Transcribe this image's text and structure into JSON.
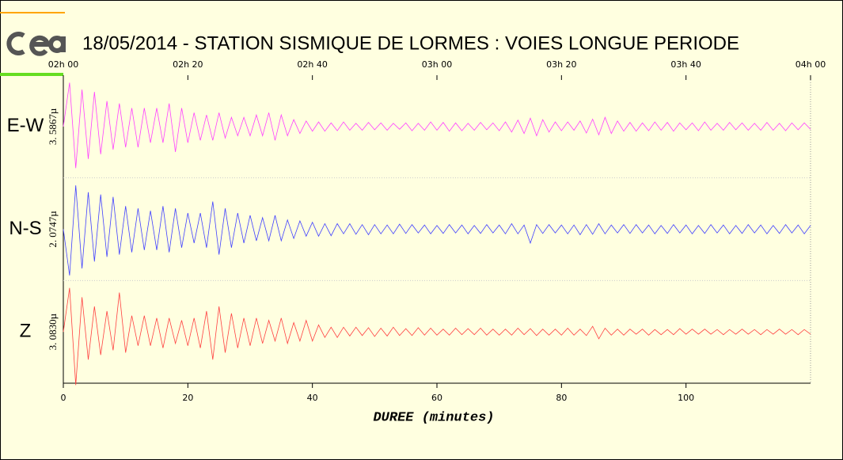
{
  "chart_data": {
    "type": "line",
    "title": "18/05/2014  -  STATION SISMIQUE DE LORMES : VOIES LONGUE PERIODE",
    "x_label": "DUREE (minutes)",
    "xlim": [
      0,
      120
    ],
    "xticks": [
      0,
      20,
      40,
      60,
      80,
      100
    ],
    "x2ticks": [
      {
        "value": 0,
        "label": "02h 00"
      },
      {
        "value": 20,
        "label": "02h 20"
      },
      {
        "value": 40,
        "label": "02h 40"
      },
      {
        "value": 60,
        "label": "03h 00"
      },
      {
        "value": 80,
        "label": "03h 20"
      },
      {
        "value": 100,
        "label": "03h 40"
      },
      {
        "value": 120,
        "label": "04h 00"
      }
    ],
    "ylim": [
      -1,
      1
    ],
    "x": [
      0,
      1,
      2,
      3,
      4,
      5,
      6,
      7,
      8,
      9,
      10,
      11,
      12,
      13,
      14,
      15,
      16,
      17,
      18,
      19,
      20,
      21,
      22,
      23,
      24,
      25,
      26,
      27,
      28,
      29,
      30,
      31,
      32,
      33,
      34,
      35,
      36,
      37,
      38,
      39,
      40,
      41,
      42,
      43,
      44,
      45,
      46,
      47,
      48,
      49,
      50,
      51,
      52,
      53,
      54,
      55,
      56,
      57,
      58,
      59,
      60,
      61,
      62,
      63,
      64,
      65,
      66,
      67,
      68,
      69,
      70,
      71,
      72,
      73,
      74,
      75,
      76,
      77,
      78,
      79,
      80,
      81,
      82,
      83,
      84,
      85,
      86,
      87,
      88,
      89,
      90,
      91,
      92,
      93,
      94,
      95,
      96,
      97,
      98,
      99,
      100,
      101,
      102,
      103,
      104,
      105,
      106,
      107,
      108,
      109,
      110,
      111,
      112,
      113,
      114,
      115,
      116,
      117,
      118,
      119,
      120
    ],
    "series": [
      {
        "name": "E-W",
        "scale_label": "3. 5867µ",
        "color": "#ff40ff",
        "values": [
          0,
          0.95,
          -0.9,
          0.8,
          -0.7,
          0.75,
          -0.6,
          0.55,
          -0.5,
          0.5,
          -0.45,
          0.4,
          -0.45,
          0.4,
          -0.35,
          0.4,
          -0.35,
          0.5,
          -0.55,
          0.4,
          -0.35,
          0.3,
          -0.3,
          0.25,
          -0.3,
          0.3,
          -0.25,
          0.2,
          -0.2,
          0.2,
          -0.2,
          0.25,
          -0.2,
          0.3,
          -0.3,
          0.25,
          -0.2,
          0.15,
          -0.15,
          0.12,
          -0.1,
          0.1,
          -0.1,
          0.08,
          -0.09,
          0.1,
          -0.08,
          0.07,
          -0.08,
          0.09,
          -0.07,
          0.08,
          -0.08,
          0.07,
          -0.06,
          0.08,
          -0.09,
          0.07,
          -0.08,
          0.1,
          -0.08,
          0.09,
          -0.1,
          0.08,
          -0.09,
          0.07,
          -0.08,
          0.09,
          -0.07,
          0.08,
          -0.09,
          0.1,
          -0.12,
          0.14,
          -0.15,
          0.18,
          -0.2,
          0.15,
          -0.12,
          0.1,
          -0.09,
          0.1,
          -0.08,
          0.12,
          -0.14,
          0.16,
          -0.18,
          0.2,
          -0.15,
          0.12,
          -0.1,
          0.09,
          -0.1,
          0.08,
          -0.09,
          0.1,
          -0.08,
          0.09,
          -0.1,
          0.08,
          -0.07,
          0.08,
          -0.09,
          0.1,
          -0.08,
          0.07,
          -0.08,
          0.09,
          -0.07,
          0.08,
          -0.08,
          0.07,
          -0.08,
          0.09,
          -0.08,
          0.07,
          -0.09,
          0.08,
          -0.07,
          0.08,
          -0.06
        ]
      },
      {
        "name": "N-S",
        "scale_label": "2. 0747µ",
        "color": "#4040ff",
        "values": [
          0,
          -1.0,
          0.95,
          -0.85,
          0.8,
          -0.7,
          0.75,
          -0.6,
          0.7,
          -0.55,
          0.5,
          -0.5,
          0.45,
          -0.45,
          0.4,
          -0.45,
          0.5,
          -0.5,
          0.45,
          -0.4,
          0.35,
          -0.3,
          0.35,
          -0.4,
          0.6,
          -0.55,
          0.45,
          -0.4,
          0.35,
          -0.3,
          0.3,
          -0.25,
          0.25,
          -0.25,
          0.3,
          -0.25,
          0.2,
          -0.2,
          0.18,
          -0.15,
          0.15,
          -0.15,
          0.12,
          -0.14,
          0.12,
          -0.1,
          0.12,
          -0.11,
          0.1,
          -0.12,
          0.1,
          -0.1,
          0.09,
          -0.1,
          0.11,
          -0.09,
          0.1,
          -0.08,
          0.09,
          -0.1,
          0.08,
          -0.09,
          0.1,
          -0.08,
          0.09,
          -0.1,
          0.08,
          -0.09,
          0.1,
          -0.08,
          0.09,
          -0.1,
          0.12,
          -0.1,
          0.09,
          -0.3,
          0.1,
          -0.09,
          0.1,
          -0.08,
          0.09,
          -0.1,
          0.09,
          -0.12,
          0.1,
          -0.11,
          0.12,
          -0.1,
          0.09,
          -0.08,
          0.1,
          -0.09,
          0.1,
          -0.08,
          0.09,
          -0.1,
          0.08,
          -0.09,
          0.1,
          -0.08,
          0.09,
          -0.1,
          0.08,
          -0.09,
          0.1,
          -0.08,
          0.09,
          -0.1,
          0.08,
          -0.09,
          0.1,
          -0.08,
          0.09,
          -0.1,
          0.08,
          -0.09,
          0.1,
          -0.08,
          0.09,
          -0.1,
          0.08
        ]
      },
      {
        "name": "Z",
        "scale_label": "3. 0830µ",
        "color": "#ff4040",
        "values": [
          0,
          0.95,
          -1.15,
          0.75,
          -0.6,
          0.55,
          -0.5,
          0.45,
          -0.4,
          0.85,
          -0.45,
          0.35,
          -0.3,
          0.35,
          -0.3,
          0.3,
          -0.35,
          0.3,
          -0.25,
          0.25,
          -0.3,
          0.3,
          -0.35,
          0.45,
          -0.6,
          0.55,
          -0.45,
          0.4,
          -0.35,
          0.3,
          -0.3,
          0.3,
          -0.25,
          0.25,
          -0.2,
          0.3,
          -0.25,
          0.2,
          -0.2,
          0.25,
          -0.2,
          0.15,
          -0.12,
          0.1,
          -0.12,
          0.1,
          -0.09,
          0.1,
          -0.08,
          0.09,
          -0.1,
          0.08,
          -0.09,
          0.1,
          -0.08,
          0.07,
          -0.08,
          0.09,
          -0.07,
          0.08,
          -0.07,
          0.06,
          -0.07,
          0.08,
          -0.06,
          0.07,
          -0.06,
          0.08,
          -0.07,
          0.06,
          -0.07,
          0.06,
          -0.07,
          0.08,
          -0.06,
          0.07,
          -0.08,
          0.06,
          -0.07,
          0.06,
          -0.07,
          0.08,
          -0.07,
          0.06,
          -0.08,
          0.12,
          -0.15,
          0.08,
          -0.07,
          0.06,
          -0.07,
          0.06,
          -0.05,
          0.06,
          -0.07,
          0.05,
          -0.06,
          0.05,
          -0.06,
          0.07,
          -0.05,
          0.06,
          -0.05,
          0.06,
          -0.05,
          0.05,
          -0.06,
          0.05,
          -0.05,
          0.06,
          -0.05,
          0.05,
          -0.06,
          0.05,
          -0.05,
          0.06,
          -0.05,
          0.05,
          -0.06,
          0.05,
          -0.05
        ]
      }
    ]
  }
}
